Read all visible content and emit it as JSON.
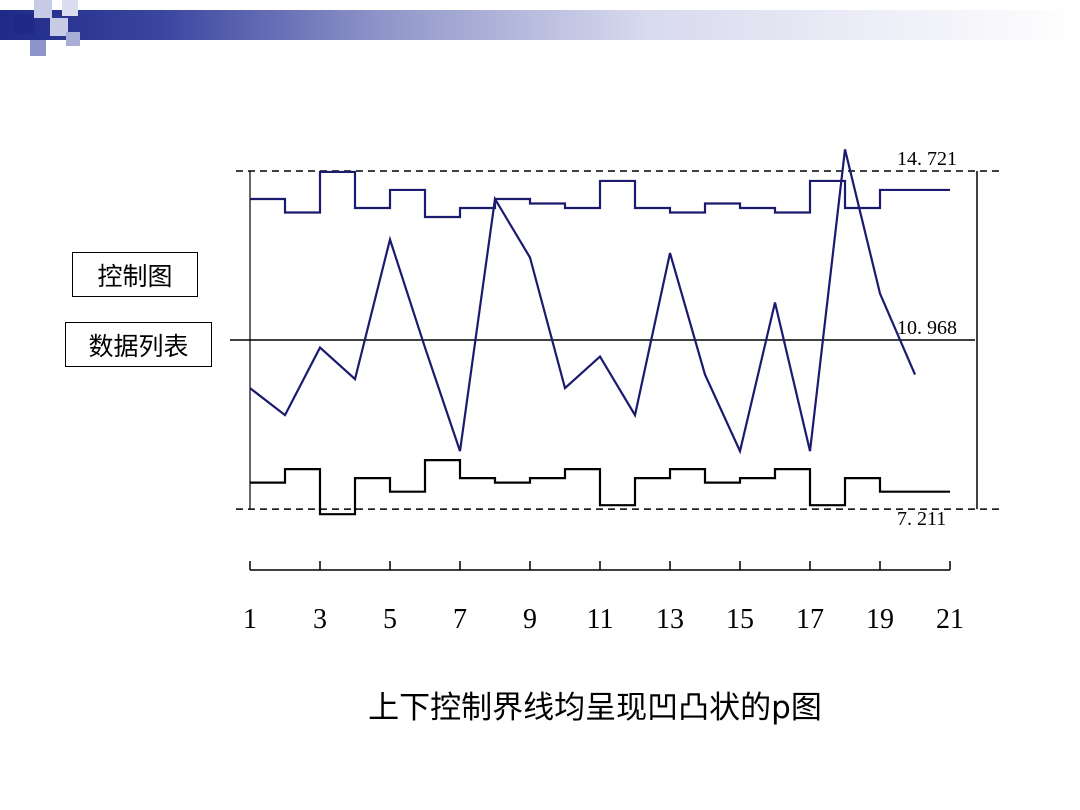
{
  "slide": {
    "caption": "上下控制界线均呈现凹凸状的p图",
    "boxes": {
      "control_chart": "控制图",
      "data_list": "数据列表"
    },
    "header_colors": {
      "dark": "#1f2a88",
      "mid": "#6a72b8",
      "light": "#b8bce0"
    }
  },
  "chart_data": {
    "type": "line",
    "title": "",
    "xlabel": "",
    "ylabel": "",
    "x_ticks": [
      1,
      3,
      5,
      7,
      9,
      11,
      13,
      15,
      17,
      19,
      21
    ],
    "xlim": [
      1,
      21
    ],
    "ylim": [
      6.6,
      15.4
    ],
    "center_line": {
      "value": 10.968,
      "label": "10. 968"
    },
    "ucl_reference": {
      "value": 14.721,
      "label": "14. 721"
    },
    "lcl_reference": {
      "value": 7.211,
      "label": "7. 211"
    },
    "colors": {
      "series": "#1a1a6e",
      "limits": "#000000"
    },
    "series": [
      {
        "name": "",
        "x": [
          1,
          2,
          3,
          4,
          5,
          6,
          7,
          8,
          9,
          10,
          11,
          12,
          13,
          14,
          15,
          16,
          17,
          18,
          19,
          20
        ],
        "values": [
          9.9,
          9.3,
          10.8,
          10.1,
          13.2,
          10.8,
          8.5,
          14.1,
          12.8,
          9.9,
          10.6,
          9.3,
          12.9,
          10.2,
          8.5,
          11.8,
          8.5,
          15.2,
          12.0,
          10.2
        ]
      },
      {
        "name": "",
        "x": [
          1,
          2,
          3,
          4,
          5,
          6,
          7,
          8,
          9,
          10,
          11,
          12,
          13,
          14,
          15,
          16,
          17,
          18,
          19,
          20
        ],
        "values": [
          14.1,
          13.8,
          14.7,
          13.9,
          14.3,
          13.7,
          13.9,
          14.1,
          14.0,
          13.9,
          14.5,
          13.9,
          13.8,
          14.0,
          13.9,
          13.8,
          14.5,
          13.9,
          14.3,
          14.3
        ]
      },
      {
        "name": "",
        "x": [
          1,
          2,
          3,
          4,
          5,
          6,
          7,
          8,
          9,
          10,
          11,
          12,
          13,
          14,
          15,
          16,
          17,
          18,
          19,
          20
        ],
        "values": [
          7.8,
          8.1,
          7.1,
          7.9,
          7.6,
          8.3,
          7.9,
          7.8,
          7.9,
          8.1,
          7.3,
          7.9,
          8.1,
          7.8,
          7.9,
          8.1,
          7.3,
          7.9,
          7.6,
          7.6
        ]
      }
    ]
  }
}
